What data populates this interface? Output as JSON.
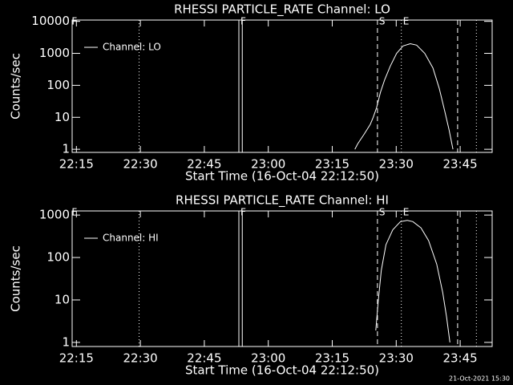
{
  "chart_data": [
    {
      "type": "line",
      "title": "RHESSI PARTICLE_RATE Channel: LO",
      "y_label": "Counts/sec",
      "x_label": "Start Time (16-Oct-04 22:12:50)",
      "log_y": true,
      "legend": "upper left",
      "xlim": [
        1334,
        1432.5
      ],
      "xticks": [
        {
          "value": 1335,
          "label": "22:15"
        },
        {
          "value": 1350,
          "label": "22:30"
        },
        {
          "value": 1365,
          "label": "22:45"
        },
        {
          "value": 1380,
          "label": "23:00"
        },
        {
          "value": 1395,
          "label": "23:15"
        },
        {
          "value": 1410,
          "label": "23:30"
        },
        {
          "value": 1425,
          "label": "23:45"
        }
      ],
      "ylim": [
        0.8,
        11000
      ],
      "yticks": [
        1,
        10,
        100,
        1000,
        10000
      ],
      "x": [
        1400.3,
        1401.0,
        1402.5,
        1403.9,
        1404.6,
        1405.4,
        1406.3,
        1407.3,
        1408.6,
        1410.1,
        1411.6,
        1413.3,
        1414.8,
        1416.7,
        1418.6,
        1420.1,
        1421.4,
        1422.4,
        1423.3
      ],
      "series": [
        {
          "name": "Channel: LO",
          "color": "#ffffff",
          "values": [
            1,
            1.5,
            3,
            6,
            10,
            20,
            60,
            150,
            400,
            1000,
            1700,
            2000,
            1800,
            1000,
            350,
            80,
            15,
            4,
            1
          ]
        }
      ],
      "vlines": [
        {
          "x": 1349.7,
          "style": "dotted"
        },
        {
          "x": 1373.1,
          "style": "solid"
        },
        {
          "x": 1373.9,
          "style": "solid"
        },
        {
          "x": 1405.6,
          "style": "dashed"
        },
        {
          "x": 1411.2,
          "style": "dotted"
        },
        {
          "x": 1424.4,
          "style": "dashed"
        },
        {
          "x": 1428.8,
          "style": "dotted"
        }
      ],
      "flags": [
        {
          "x": 1333.5,
          "text": "F"
        },
        {
          "x": 1373.1,
          "text": "F"
        },
        {
          "x": 1405.6,
          "text": "S"
        },
        {
          "x": 1411.2,
          "text": "E"
        }
      ]
    },
    {
      "type": "line",
      "title": "RHESSI PARTICLE_RATE Channel: HI",
      "y_label": "Counts/sec",
      "x_label": "Start Time (16-Oct-04 22:12:50)",
      "log_y": true,
      "legend": "upper left",
      "xlim": [
        1334,
        1432.5
      ],
      "xticks": [
        {
          "value": 1335,
          "label": "22:15"
        },
        {
          "value": 1350,
          "label": "22:30"
        },
        {
          "value": 1365,
          "label": "22:45"
        },
        {
          "value": 1380,
          "label": "23:00"
        },
        {
          "value": 1395,
          "label": "23:15"
        },
        {
          "value": 1410,
          "label": "23:30"
        },
        {
          "value": 1425,
          "label": "23:45"
        }
      ],
      "ylim": [
        0.8,
        1250
      ],
      "yticks": [
        1,
        10,
        100,
        1000
      ],
      "x": [
        1405.2,
        1405.8,
        1406.5,
        1407.6,
        1409.2,
        1411.0,
        1412.6,
        1413.9,
        1415.8,
        1417.6,
        1419.5,
        1420.9,
        1421.8,
        1422.6
      ],
      "series": [
        {
          "name": "Channel: HI",
          "color": "#ffffff",
          "values": [
            1.9,
            10,
            50,
            200,
            450,
            700,
            750,
            700,
            500,
            250,
            70,
            15,
            4,
            1
          ]
        }
      ],
      "vlines": [
        {
          "x": 1349.7,
          "style": "dotted"
        },
        {
          "x": 1373.1,
          "style": "solid"
        },
        {
          "x": 1373.9,
          "style": "solid"
        },
        {
          "x": 1405.6,
          "style": "dashed"
        },
        {
          "x": 1411.2,
          "style": "dotted"
        },
        {
          "x": 1424.4,
          "style": "dashed"
        },
        {
          "x": 1428.8,
          "style": "dotted"
        }
      ],
      "flags": [
        {
          "x": 1333.5,
          "text": "F"
        },
        {
          "x": 1373.1,
          "text": "F"
        },
        {
          "x": 1405.6,
          "text": "S"
        },
        {
          "x": 1411.2,
          "text": "E"
        }
      ]
    }
  ],
  "footer": "21-Oct-2021 15:30"
}
